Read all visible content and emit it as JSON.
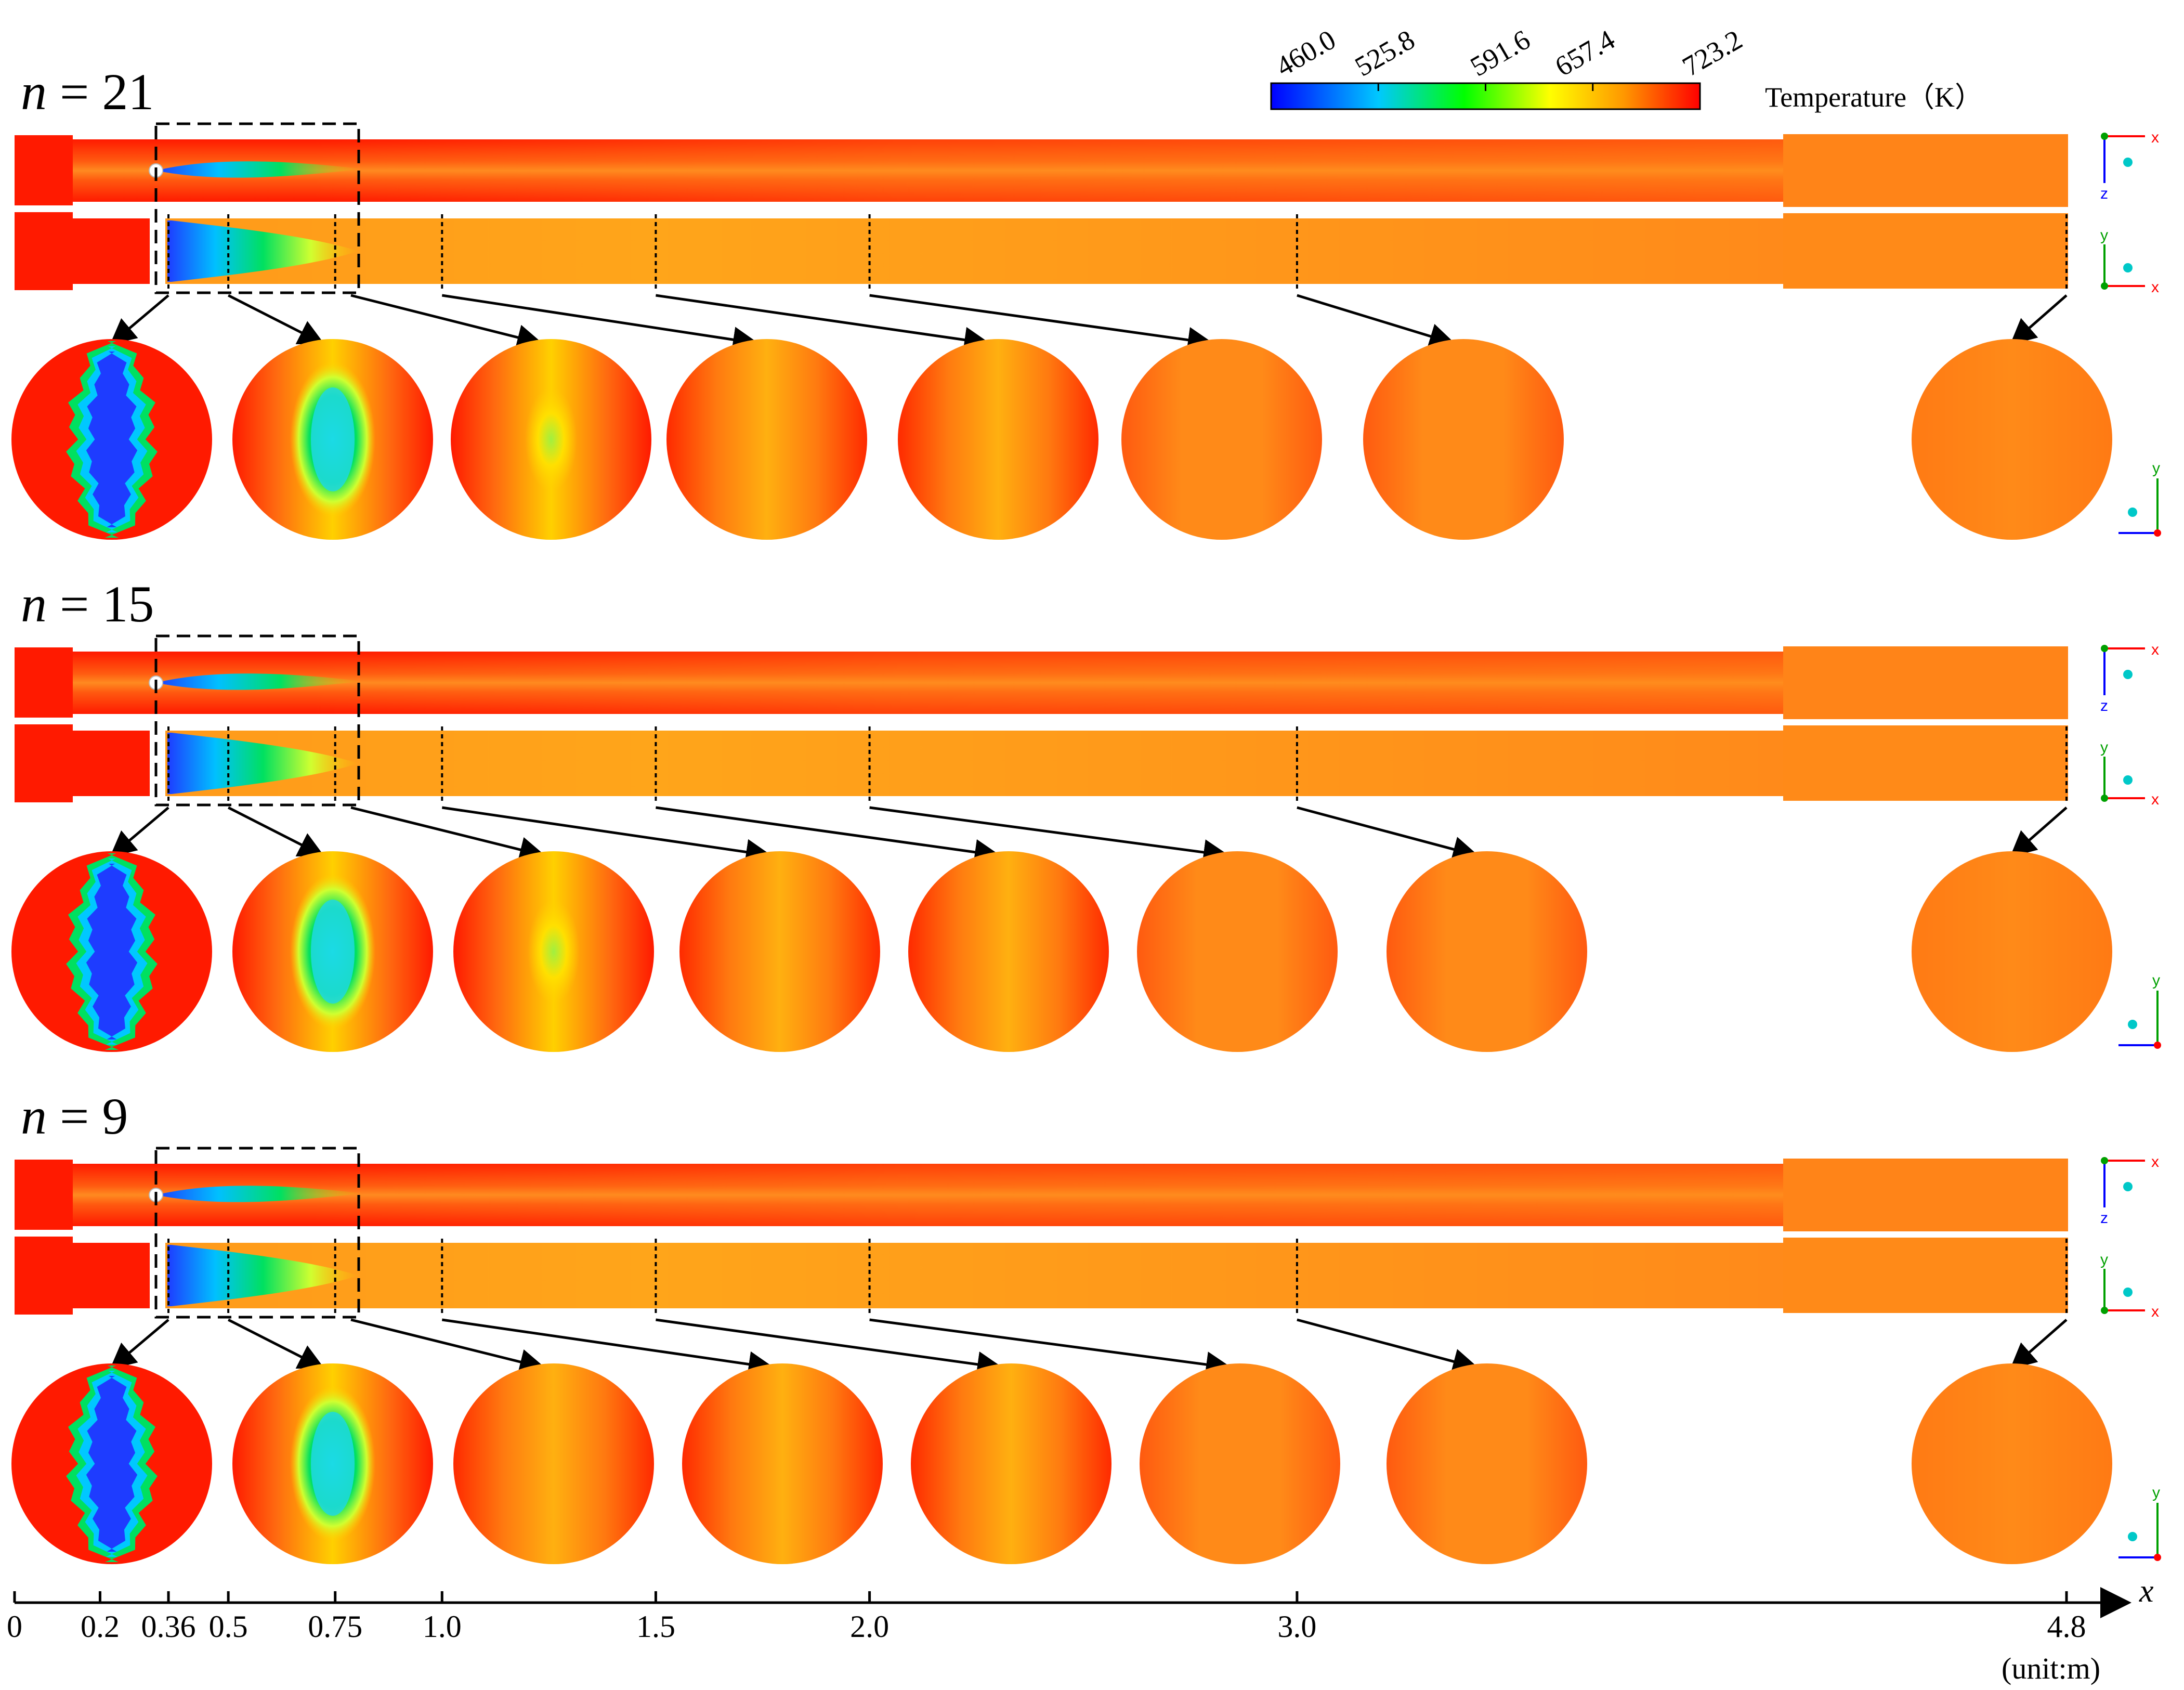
{
  "colorbar": {
    "title": "Temperature（K）",
    "tick_labels": [
      "460.0",
      "525.8",
      "591.6",
      "657.4",
      "723.2"
    ],
    "min": 460.0,
    "max": 723.2,
    "stops": [
      "#0000ff",
      "#00c8ff",
      "#00ff00",
      "#ffff00",
      "#ff9900",
      "#ff0000"
    ]
  },
  "panels": [
    {
      "n_label": "n",
      "n_eq": "= 21",
      "n": 21,
      "section_x_m": [
        0.36,
        0.5,
        0.75,
        1.0,
        1.5,
        2.0,
        3.0,
        4.8
      ],
      "cross_sections": [
        {
          "x_m": 0.36,
          "pattern": "cold-core-jagged",
          "core_temp_K": 470
        },
        {
          "x_m": 0.5,
          "pattern": "cold-ellipse",
          "core_temp_K": 540
        },
        {
          "x_m": 0.75,
          "pattern": "band",
          "core_temp_K": 600
        },
        {
          "x_m": 1.0,
          "pattern": "band",
          "core_temp_K": 650
        },
        {
          "x_m": 1.5,
          "pattern": "band",
          "core_temp_K": 680
        },
        {
          "x_m": 2.0,
          "pattern": "uniform",
          "core_temp_K": 690
        },
        {
          "x_m": 3.0,
          "pattern": "uniform",
          "core_temp_K": 695
        },
        {
          "x_m": 4.8,
          "pattern": "uniform",
          "core_temp_K": 695
        }
      ]
    },
    {
      "n_label": "n",
      "n_eq": "= 15",
      "n": 15,
      "section_x_m": [
        0.36,
        0.5,
        0.75,
        1.0,
        1.5,
        2.0,
        3.0,
        4.8
      ],
      "cross_sections": [
        {
          "x_m": 0.36,
          "pattern": "cold-core-jagged",
          "core_temp_K": 470
        },
        {
          "x_m": 0.5,
          "pattern": "cold-ellipse",
          "core_temp_K": 545
        },
        {
          "x_m": 0.75,
          "pattern": "band",
          "core_temp_K": 630
        },
        {
          "x_m": 1.0,
          "pattern": "band",
          "core_temp_K": 660
        },
        {
          "x_m": 1.5,
          "pattern": "band",
          "core_temp_K": 685
        },
        {
          "x_m": 2.0,
          "pattern": "uniform",
          "core_temp_K": 690
        },
        {
          "x_m": 3.0,
          "pattern": "uniform",
          "core_temp_K": 695
        },
        {
          "x_m": 4.8,
          "pattern": "uniform",
          "core_temp_K": 695
        }
      ]
    },
    {
      "n_label": "n",
      "n_eq": "= 9",
      "n": 9,
      "section_x_m": [
        0.36,
        0.5,
        0.75,
        1.0,
        1.5,
        2.0,
        3.0,
        4.8
      ],
      "cross_sections": [
        {
          "x_m": 0.36,
          "pattern": "cold-core-wavy",
          "core_temp_K": 470
        },
        {
          "x_m": 0.5,
          "pattern": "cold-ellipse",
          "core_temp_K": 560
        },
        {
          "x_m": 0.75,
          "pattern": "band",
          "core_temp_K": 645
        },
        {
          "x_m": 1.0,
          "pattern": "band",
          "core_temp_K": 665
        },
        {
          "x_m": 1.5,
          "pattern": "band",
          "core_temp_K": 685
        },
        {
          "x_m": 2.0,
          "pattern": "uniform",
          "core_temp_K": 690
        },
        {
          "x_m": 3.0,
          "pattern": "uniform",
          "core_temp_K": 695
        },
        {
          "x_m": 4.8,
          "pattern": "uniform",
          "core_temp_K": 695
        }
      ]
    }
  ],
  "axis": {
    "label": "x",
    "unit": "(unit:m)",
    "ticks": [
      {
        "value": 0,
        "label": "0"
      },
      {
        "value": 0.2,
        "label": "0.2"
      },
      {
        "value": 0.36,
        "label": "0.36"
      },
      {
        "value": 0.5,
        "label": "0.5"
      },
      {
        "value": 0.75,
        "label": "0.75"
      },
      {
        "value": 1.0,
        "label": "1.0"
      },
      {
        "value": 1.5,
        "label": "1.5"
      },
      {
        "value": 2.0,
        "label": "2.0"
      },
      {
        "value": 3.0,
        "label": "3.0"
      },
      {
        "value": 4.8,
        "label": "4.8"
      }
    ]
  },
  "triads": {
    "top_view": [
      "x",
      "z"
    ],
    "side_view": [
      "y",
      "x"
    ],
    "section_view": [
      "y"
    ]
  },
  "colors": {
    "hot": "#ff1a00",
    "warm": "#ff7a10",
    "orange": "#ff8e1a",
    "yellow": "#ffd000",
    "green": "#00e060",
    "cyan": "#00e6ff",
    "blue": "#1e3cff",
    "axis_x": "#ff0000",
    "axis_y": "#00a000",
    "axis_z": "#0000ff"
  }
}
